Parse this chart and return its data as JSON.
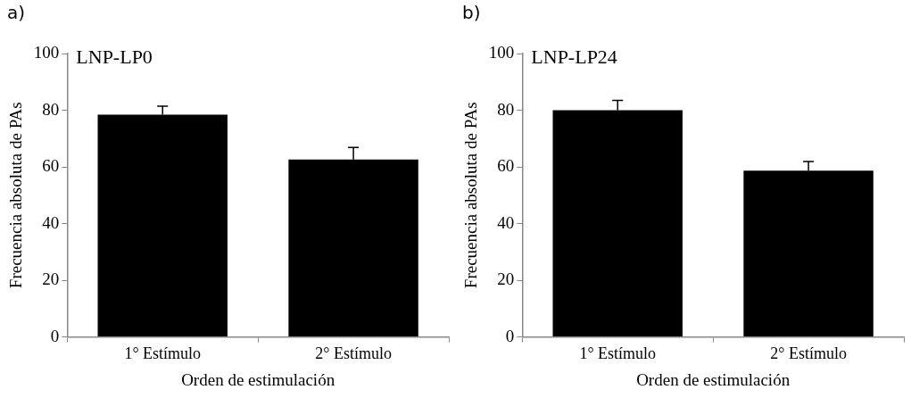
{
  "chart_data": [
    {
      "type": "bar",
      "title": "LNP-LP0",
      "annotations": [
        "a)"
      ],
      "xlabel": "Orden de estimulación",
      "ylabel": "Frecuencia absoluta de PAs",
      "categories": [
        "1° Estímulo",
        "2° Estímulo"
      ],
      "values": [
        78.4,
        62.6
      ],
      "errors": [
        [
          78.4,
          81.4
        ],
        [
          62.6,
          66.9
        ]
      ],
      "color": "#000000",
      "ylim": [
        0,
        100
      ],
      "yticks": [
        0,
        20,
        40,
        60,
        80,
        100
      ],
      "grid": false,
      "legend": false
    },
    {
      "type": "bar",
      "title": "LNP-LP24",
      "annotations": [
        "b)"
      ],
      "xlabel": "Orden de estimulación",
      "ylabel": "Frecuencia absoluta de PAs",
      "categories": [
        "1° Estímulo",
        "2° Estímulo"
      ],
      "values": [
        80.0,
        58.7
      ],
      "errors": [
        [
          80.0,
          83.5
        ],
        [
          58.7,
          61.9
        ]
      ],
      "color": "#000000",
      "ylim": [
        0,
        100
      ],
      "yticks": [
        0,
        20,
        40,
        60,
        80,
        100
      ],
      "grid": false,
      "legend": false
    }
  ]
}
